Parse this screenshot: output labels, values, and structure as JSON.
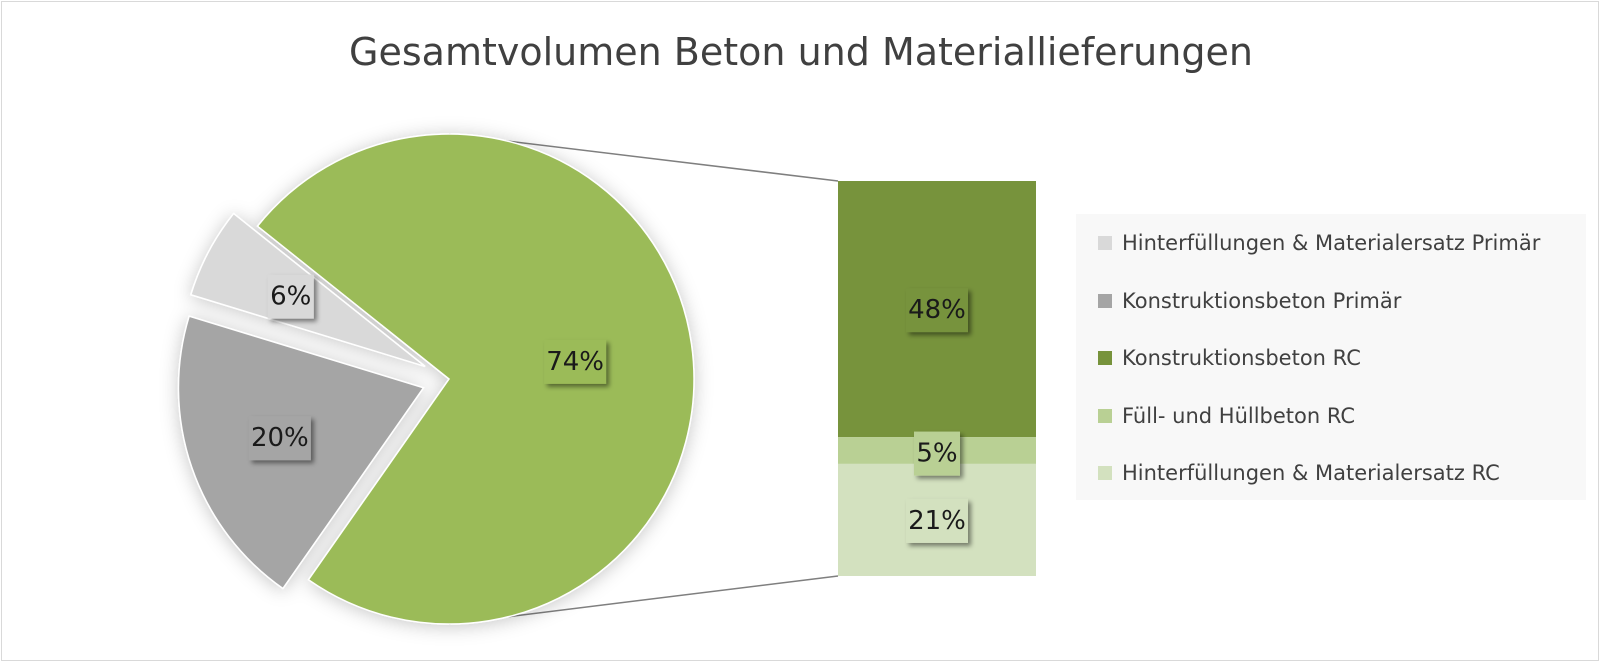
{
  "chart_data": {
    "type": "pie",
    "subtype": "bar-of-pie",
    "title": "Gesamtvolumen Beton und Materiallieferungen",
    "pie": {
      "slices": [
        {
          "label": "Konstruktionsbeton Primär",
          "value": 20,
          "value_label": "20%",
          "color": "#a5a5a5",
          "exploded": true
        },
        {
          "label": "Hinterfüllungen & Materialersatz Primär",
          "value": 6,
          "value_label": "6%",
          "color": "#d9d9d9",
          "exploded": true
        },
        {
          "label": "",
          "value": 74,
          "value_label": "74%",
          "color": "#9bbb59",
          "exploded": false
        }
      ]
    },
    "bar": {
      "segments": [
        {
          "label": "Konstruktionsbeton RC",
          "value": 48,
          "value_label": "48%",
          "color": "#77933c"
        },
        {
          "label": "Füll- und Hüllbeton RC",
          "value": 5,
          "value_label": "5%",
          "color": "#b9d094"
        },
        {
          "label": "Hinterfüllungen & Materialersatz RC",
          "value": 21,
          "value_label": "21%",
          "color": "#d3e1bf"
        }
      ]
    },
    "legend": {
      "position": "right",
      "items": [
        {
          "label": "Hinterfüllungen & Materialersatz Primär",
          "color": "#d9d9d9"
        },
        {
          "label": "Konstruktionsbeton Primär",
          "color": "#a5a5a5"
        },
        {
          "label": "Konstruktionsbeton RC",
          "color": "#77933c"
        },
        {
          "label": "Füll- und Hüllbeton RC",
          "color": "#b9d094"
        },
        {
          "label": "Hinterfüllungen & Materialersatz RC",
          "color": "#d3e1bf"
        }
      ]
    },
    "connector_color": "#7f7f7f",
    "label_box_color": "#dcdcdc"
  }
}
